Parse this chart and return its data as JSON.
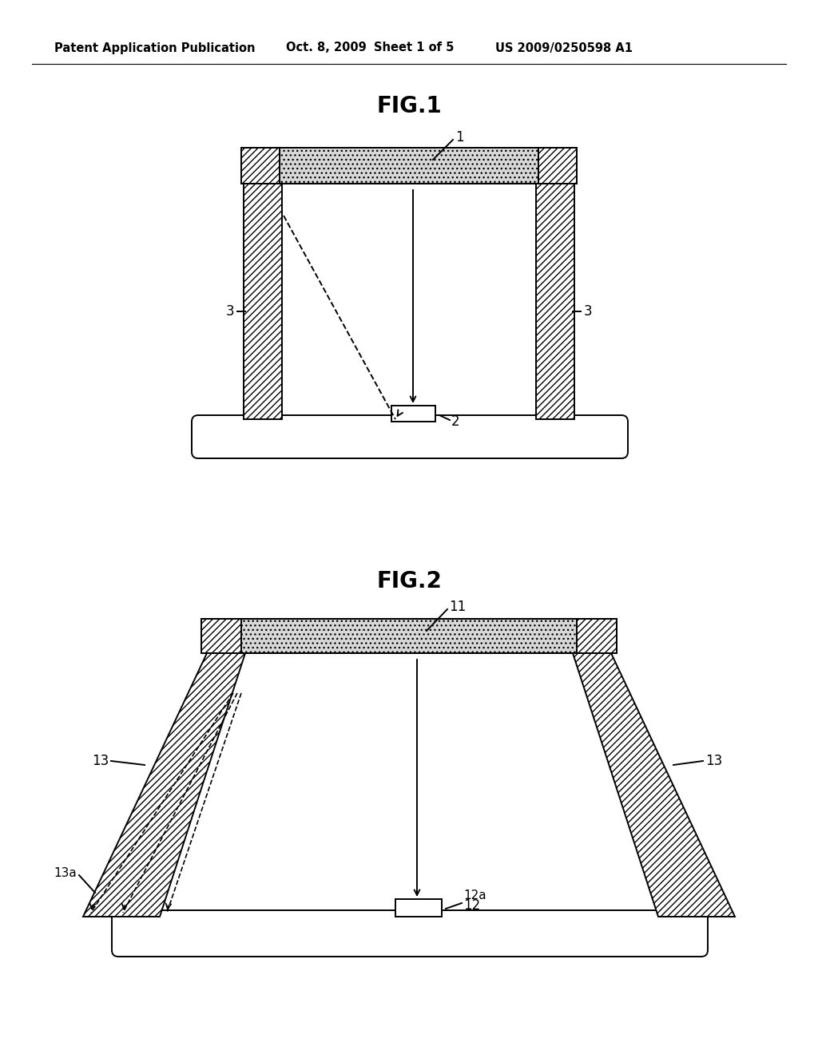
{
  "bg_color": "#ffffff",
  "header_text": "Patent Application Publication",
  "header_date": "Oct. 8, 2009",
  "header_sheet": "Sheet 1 of 5",
  "header_patent": "US 2009/0250598 A1",
  "fig1_title": "FIG.1",
  "fig2_title": "FIG.2",
  "line_color": "#000000",
  "label_1": "1",
  "label_2": "2",
  "label_3_left": "3",
  "label_3_right": "3",
  "label_11": "11",
  "label_12": "12",
  "label_12a": "12a",
  "label_13_left": "13",
  "label_13_right": "13",
  "label_13a": "13a"
}
